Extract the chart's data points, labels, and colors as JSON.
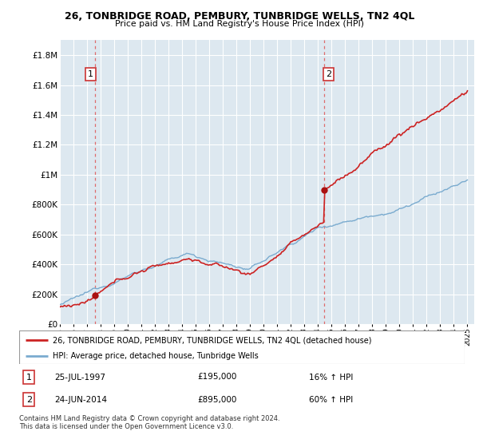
{
  "title": "26, TONBRIDGE ROAD, PEMBURY, TUNBRIDGE WELLS, TN2 4QL",
  "subtitle": "Price paid vs. HM Land Registry's House Price Index (HPI)",
  "sale1_date": 1997.56,
  "sale1_price": 195000,
  "sale2_date": 2014.48,
  "sale2_price": 895000,
  "sale1_display": "25-JUL-1997",
  "sale1_amount": "£195,000",
  "sale1_hpi": "16% ↑ HPI",
  "sale2_display": "24-JUN-2014",
  "sale2_amount": "£895,000",
  "sale2_hpi": "60% ↑ HPI",
  "legend_house": "26, TONBRIDGE ROAD, PEMBURY, TUNBRIDGE WELLS, TN2 4QL (detached house)",
  "legend_hpi": "HPI: Average price, detached house, Tunbridge Wells",
  "footer": "Contains HM Land Registry data © Crown copyright and database right 2024.\nThis data is licensed under the Open Government Licence v3.0.",
  "hpi_color": "#7aabcf",
  "house_color": "#cc2222",
  "dot_color": "#aa1111",
  "vline_color": "#dd5555",
  "bg_color": "#dde8f0",
  "grid_color": "#ffffff",
  "ylim_max": 1900000,
  "xmin": 1995.0,
  "xmax": 2025.5,
  "fig_width": 6.0,
  "fig_height": 5.6,
  "dpi": 100
}
